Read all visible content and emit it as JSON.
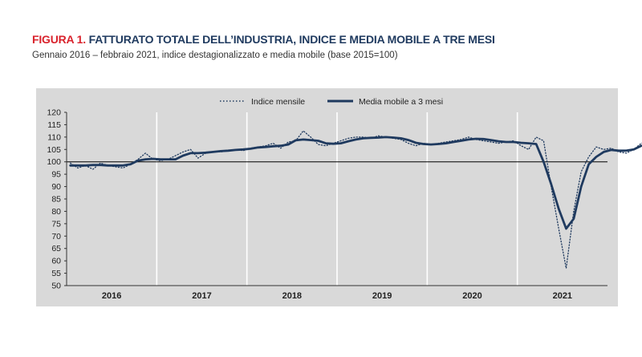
{
  "header": {
    "figure_label": "FIGURA 1.",
    "title": "FATTURATO TOTALE DELL’INDUSTRIA, INDICE E MEDIA MOBILE A TRE MESI",
    "subtitle": "Gennaio 2016 – febbraio 2021, indice destagionalizzato e media mobile (base 2015=100)"
  },
  "colors": {
    "line": "#1f3a5f",
    "panel": "#d9d9d9",
    "grid": "#ffffff",
    "baseline": "#000000",
    "figure_label": "#d9232d"
  },
  "chart_data": {
    "type": "line",
    "title": "FATTURATO TOTALE DELL’INDUSTRIA, INDICE E MEDIA MOBILE A TRE MESI",
    "xlabel": "",
    "ylabel": "",
    "ylim": [
      50,
      120
    ],
    "yticks": [
      50,
      55,
      60,
      65,
      70,
      75,
      80,
      85,
      90,
      95,
      100,
      105,
      110,
      115,
      120
    ],
    "years": [
      "2016",
      "2017",
      "2018",
      "2019",
      "2020",
      "2021"
    ],
    "baseline": 100,
    "legend_position": "top-center",
    "series": [
      {
        "name": "Indice mensile",
        "style": "dotted",
        "values": [
          99.5,
          97.5,
          98.5,
          97.0,
          99.5,
          98.5,
          98.0,
          97.5,
          99.0,
          101.0,
          103.5,
          101.0,
          100.5,
          101.0,
          102.5,
          104.0,
          105.0,
          101.5,
          103.5,
          104.0,
          104.0,
          104.5,
          105.0,
          104.5,
          105.5,
          106.0,
          106.5,
          107.5,
          105.5,
          108.0,
          108.5,
          112.5,
          110.0,
          107.0,
          106.5,
          107.5,
          108.5,
          109.5,
          110.0,
          110.0,
          109.5,
          110.5,
          110.0,
          109.5,
          109.0,
          107.5,
          106.5,
          107.5,
          107.0,
          107.5,
          108.0,
          108.5,
          109.0,
          110.0,
          109.0,
          108.5,
          108.0,
          107.5,
          108.0,
          108.5,
          106.5,
          105.0,
          110.0,
          108.5,
          90.0,
          73.0,
          57.0,
          80.0,
          96.0,
          102.0,
          106.0,
          105.0,
          105.5,
          104.0,
          103.5,
          105.0,
          107.5,
          108.0
        ]
      },
      {
        "name": "Media mobile a 3 mesi",
        "style": "solid",
        "values": [
          98.5,
          98.5,
          98.5,
          98.7,
          98.7,
          98.5,
          98.5,
          98.5,
          99.0,
          100.5,
          101.0,
          101.2,
          101.0,
          101.0,
          101.0,
          102.5,
          103.5,
          103.5,
          103.7,
          104.0,
          104.3,
          104.5,
          104.8,
          105.0,
          105.3,
          105.8,
          106.0,
          106.3,
          106.5,
          107.0,
          108.7,
          109.0,
          108.8,
          108.5,
          107.5,
          107.3,
          107.5,
          108.3,
          109.0,
          109.5,
          109.7,
          109.8,
          110.0,
          109.8,
          109.5,
          108.8,
          107.7,
          107.2,
          107.0,
          107.2,
          107.5,
          108.0,
          108.5,
          109.0,
          109.3,
          109.2,
          108.8,
          108.3,
          108.0,
          108.0,
          107.7,
          107.5,
          107.2,
          100.0,
          91.0,
          81.0,
          73.0,
          77.0,
          90.0,
          99.0,
          102.0,
          104.0,
          104.8,
          104.5,
          104.5,
          105.0,
          106.5
        ]
      }
    ]
  }
}
